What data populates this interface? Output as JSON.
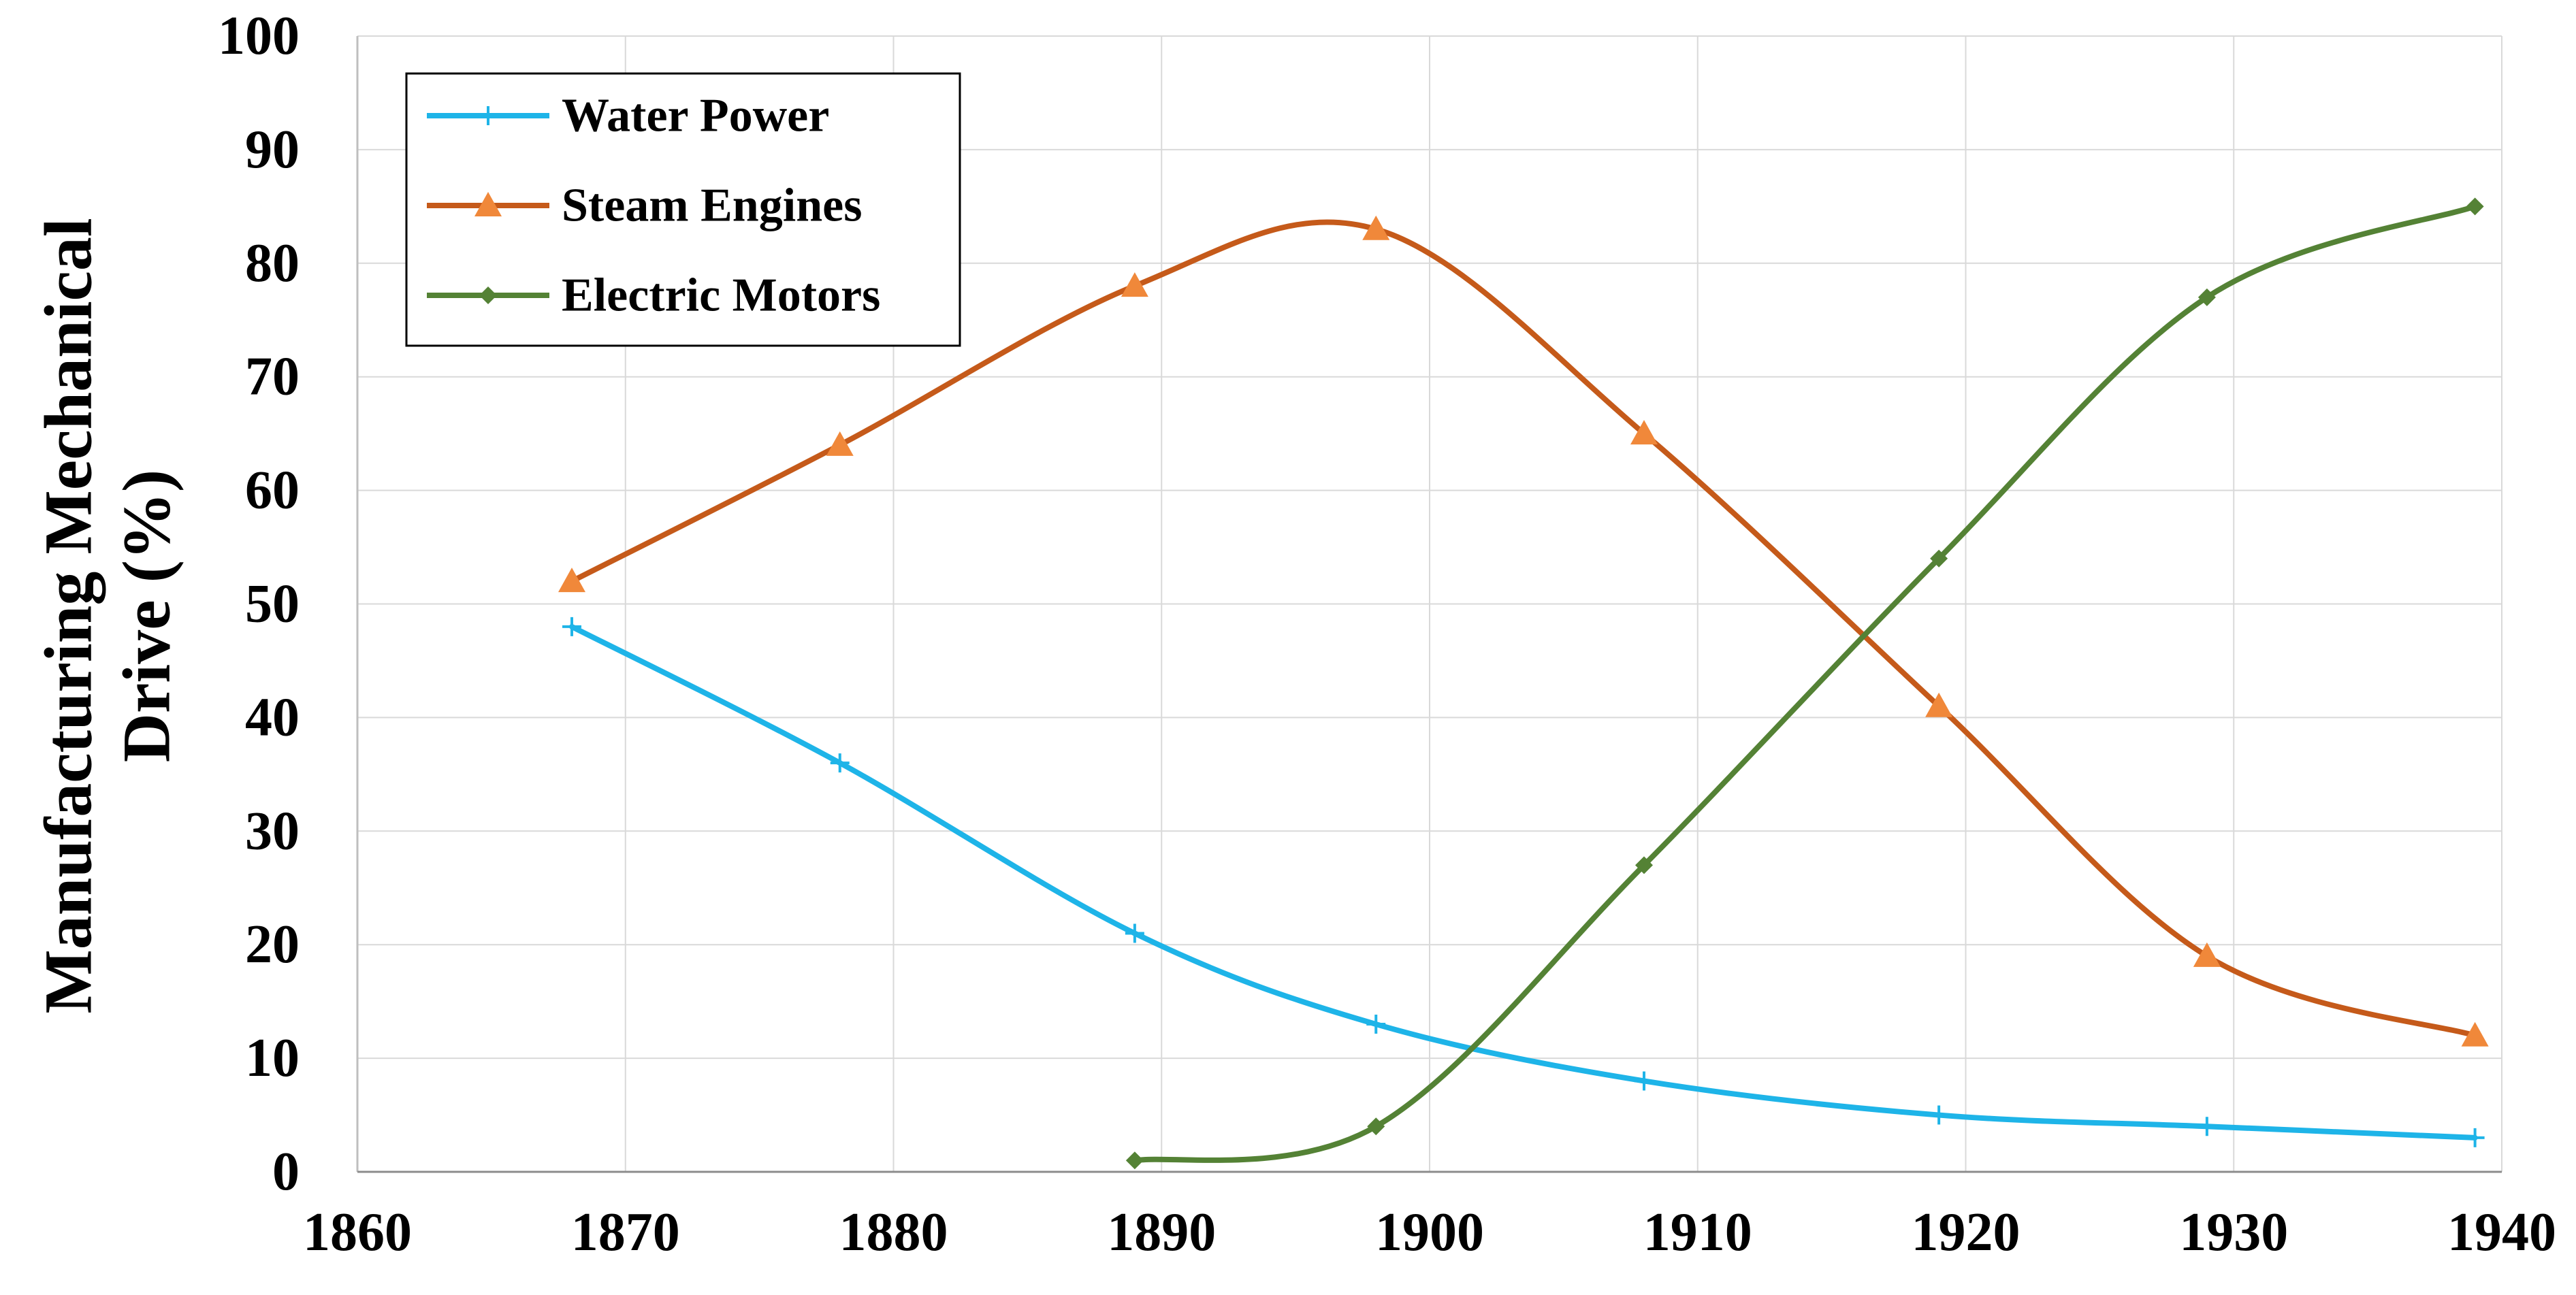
{
  "chart_data": {
    "type": "line",
    "title": "",
    "xlabel": "",
    "ylabel_lines": [
      "Manufacturing Mechanical",
      "Drive (%)"
    ],
    "xlim": [
      1860,
      1940
    ],
    "ylim": [
      0,
      100
    ],
    "xticks": [
      1860,
      1870,
      1880,
      1890,
      1900,
      1910,
      1920,
      1930,
      1940
    ],
    "yticks": [
      0,
      10,
      20,
      30,
      40,
      50,
      60,
      70,
      80,
      90,
      100
    ],
    "grid": true,
    "legend_position": "top-left",
    "series": [
      {
        "name": "Water Power",
        "color": "#1EB4E8",
        "marker": "plus",
        "x": [
          1868,
          1878,
          1889,
          1898,
          1908,
          1919,
          1929,
          1939
        ],
        "y": [
          48,
          36,
          21,
          13,
          8,
          5,
          4,
          3
        ]
      },
      {
        "name": "Steam Engines",
        "color": "#C55A1A",
        "marker_color": "#F0883A",
        "marker": "triangle",
        "x": [
          1868,
          1878,
          1889,
          1898,
          1908,
          1919,
          1929,
          1939
        ],
        "y": [
          52,
          64,
          78,
          83,
          65,
          41,
          19,
          12
        ]
      },
      {
        "name": "Electric Motors",
        "color": "#548235",
        "marker": "diamond",
        "x": [
          1889,
          1898,
          1908,
          1919,
          1929,
          1939
        ],
        "y": [
          1,
          4,
          27,
          54,
          77,
          85
        ]
      }
    ]
  }
}
